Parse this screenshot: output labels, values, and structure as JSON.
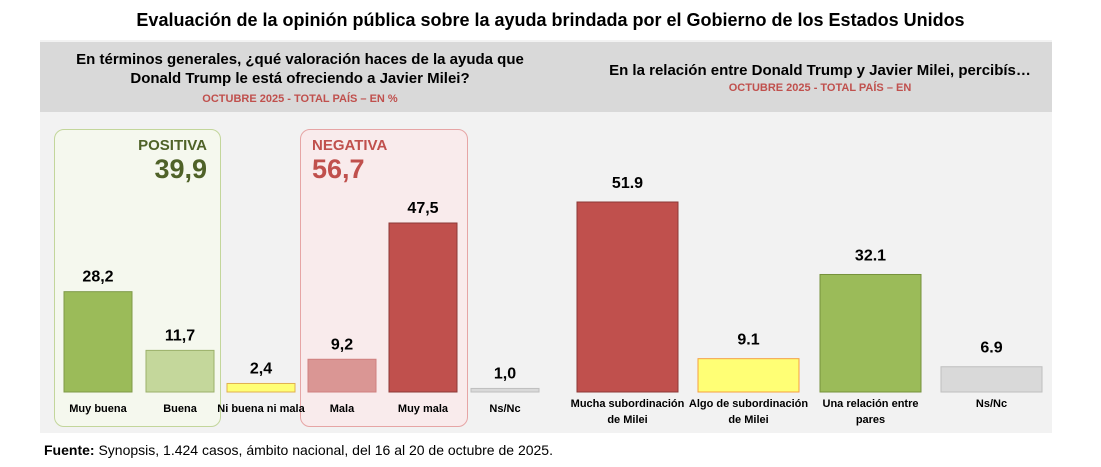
{
  "title": "Evaluación de la opinión pública sobre la ayuda brindada por el Gobierno de los Estados Unidos",
  "left_panel": {
    "question_line1": "En términos generales, ¿qué valoración haces de la ayuda que",
    "question_line2": "Donald Trump le está ofreciendo a Javier Milei?",
    "subtitle": "OCTUBRE 2025 - TOTAL PAÍS – EN %",
    "positive_group": {
      "label": "POSITIVA",
      "value": "39,9",
      "color": "#4f6228"
    },
    "negative_group": {
      "label": "NEGATIVA",
      "value": "56,7",
      "color": "#c0504d"
    }
  },
  "right_panel": {
    "question": "En la relación entre Donald Trump y Javier Milei, percibís…",
    "subtitle": "OCTUBRE 2025 - TOTAL PAÍS – EN"
  },
  "source": {
    "label": "Fuente:",
    "text": " Synopsis, 1.424 casos, ámbito nacional, del 16 al 20 de octubre de 2025."
  },
  "chart_data": [
    {
      "type": "bar",
      "title": "En términos generales, ¿qué valoración haces de la ayuda que Donald Trump le está ofreciendo a Javier Milei?",
      "subtitle": "OCTUBRE 2025 - TOTAL PAÍS – EN %",
      "categories": [
        "Muy buena",
        "Buena",
        "Ni buena ni mala",
        "Mala",
        "Muy mala",
        "Ns/Nc"
      ],
      "values": [
        28.2,
        11.7,
        2.4,
        9.2,
        47.5,
        1.0
      ],
      "value_labels": [
        "28,2",
        "11,7",
        "2,4",
        "9,2",
        "47,5",
        "1,0"
      ],
      "colors": [
        "#9bbb59",
        "#c4d79b",
        "#ffff75",
        "#da9694",
        "#c0504d",
        "#d9d9d9"
      ],
      "border_colors": [
        "#7f9a48",
        "#9bb06b",
        "#e0b050",
        "#d08080",
        "#8c3836",
        "#bfbfbf"
      ],
      "groups": [
        {
          "label": "POSITIVA",
          "value": 39.9,
          "members": [
            "Muy buena",
            "Buena"
          ]
        },
        {
          "label": "NEGATIVA",
          "value": 56.7,
          "members": [
            "Mala",
            "Muy mala"
          ]
        }
      ],
      "xlabel": "",
      "ylabel": "",
      "ylim": [
        0,
        50
      ],
      "grid": false,
      "legend": "none"
    },
    {
      "type": "bar",
      "title": "En la relación entre Donald Trump y Javier Milei, percibís…",
      "subtitle": "OCTUBRE 2025 - TOTAL PAÍS – EN",
      "categories": [
        "Mucha subordinación de Milei",
        "Algo de subordinación de Milei",
        "Una relación entre pares",
        "Ns/Nc"
      ],
      "category_lines": [
        [
          "Mucha subordinación",
          "de Milei"
        ],
        [
          "Algo de subordinación",
          "de Milei"
        ],
        [
          "Una relación  entre",
          "pares"
        ],
        [
          "Ns/Nc"
        ]
      ],
      "values": [
        51.9,
        9.1,
        32.1,
        6.9
      ],
      "value_labels": [
        "51.9",
        "9.1",
        "32.1",
        "6.9"
      ],
      "colors": [
        "#c0504d",
        "#ffff75",
        "#9bbb59",
        "#d9d9d9"
      ],
      "border_colors": [
        "#8c3836",
        "#f5a040",
        "#76923c",
        "#bfbfbf"
      ],
      "xlabel": "",
      "ylabel": "",
      "ylim": [
        0,
        55
      ],
      "grid": false,
      "legend": "none"
    }
  ]
}
